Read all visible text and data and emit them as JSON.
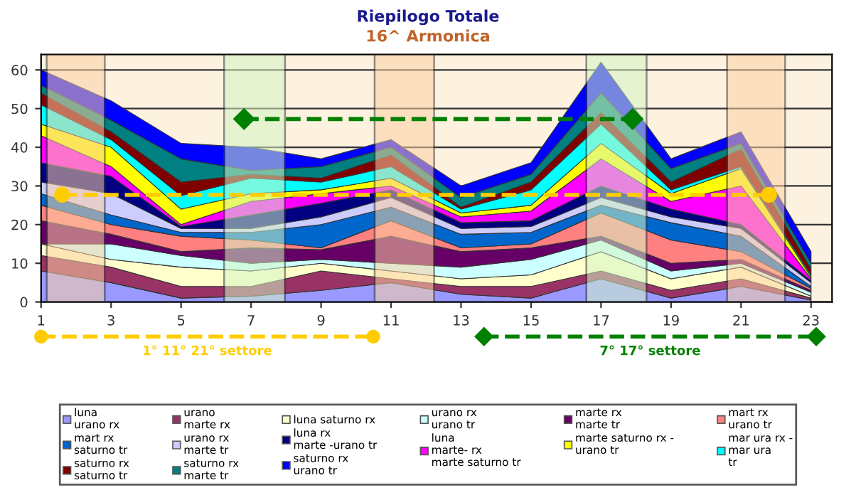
{
  "chart_data": {
    "type": "area",
    "stacked": true,
    "title": "Riepilogo Totale",
    "subtitle": "16^ Armonica",
    "x": [
      1,
      3,
      5,
      7,
      9,
      11,
      13,
      15,
      17,
      19,
      21,
      23
    ],
    "xlim": [
      1,
      23.6
    ],
    "xticks": [
      1,
      3,
      5,
      7,
      9,
      11,
      13,
      15,
      17,
      19,
      21,
      23
    ],
    "ylim": [
      0,
      64
    ],
    "yticks": [
      0,
      10,
      20,
      30,
      40,
      50,
      60
    ],
    "grid": "y",
    "legend": "bottom",
    "series": [
      {
        "name": "luna\nurano rx",
        "color": "#9999ff",
        "values": [
          8,
          5,
          1,
          1.5,
          3,
          5,
          2,
          1,
          6,
          1,
          4,
          0.5
        ]
      },
      {
        "name": "urano\nmarte rx",
        "color": "#993366",
        "values": [
          4,
          4,
          3,
          2.5,
          5,
          1,
          2,
          3,
          2,
          2,
          2,
          0.5
        ]
      },
      {
        "name": "luna saturno rx",
        "color": "#ffffcc",
        "values": [
          3,
          2,
          5,
          4,
          2,
          2,
          2,
          3,
          5,
          3,
          3,
          0.5
        ]
      },
      {
        "name": "urano rx\nurano tr",
        "color": "#ccffff",
        "values": [
          0,
          4,
          3,
          2,
          1,
          2,
          3,
          4,
          3,
          2,
          1,
          1
        ]
      },
      {
        "name": "marte rx\nmarte tr",
        "color": "#660066",
        "values": [
          6,
          2.5,
          1,
          4,
          2.5,
          7,
          4,
          3,
          1,
          2,
          1,
          0.5
        ]
      },
      {
        "name": "mart rx\nurano tr",
        "color": "#ff8080",
        "values": [
          4,
          2.5,
          4,
          2,
          0.5,
          4,
          1,
          1,
          6,
          6,
          2,
          0.5
        ]
      },
      {
        "name": "mart rx\nsaturno tr",
        "color": "#0066cc",
        "values": [
          3,
          2.5,
          1,
          2,
          6,
          3.5,
          3.5,
          3,
          2,
          4.5,
          4,
          0.5
        ]
      },
      {
        "name": "urano rx\nmarte tr",
        "color": "#ccccff",
        "values": [
          3,
          5.5,
          1,
          1,
          2,
          2.5,
          1.5,
          1.5,
          2,
          1.5,
          2,
          1
        ]
      },
      {
        "name": "luna rx\nmarte -urano tr",
        "color": "#000080",
        "values": [
          5,
          4.5,
          0.5,
          3.5,
          3.5,
          2,
          1.5,
          1.5,
          3,
          2,
          1,
          0.5
        ]
      },
      {
        "name": "luna\nmarte- rx\nmarte saturno tr",
        "color": "#ff00ff",
        "values": [
          7,
          2.5,
          0.5,
          3.5,
          2.5,
          1,
          1.5,
          2.5,
          7,
          2,
          10,
          0.5
        ]
      },
      {
        "name": "marte saturno rx -\nurano tr",
        "color": "#ffff00",
        "values": [
          3,
          5,
          4,
          2,
          1,
          2,
          1,
          1.5,
          4,
          2,
          4.5,
          0.5
        ]
      },
      {
        "name": "mar ura rx -\nmar ura\ntr",
        "color": "#00ffff",
        "values": [
          5,
          2,
          3.5,
          4,
          2,
          3,
          1,
          4,
          5,
          1,
          0.5,
          0.5
        ]
      },
      {
        "name": "saturno rx\nsaturno tr",
        "color": "#800000",
        "values": [
          3,
          2,
          3.5,
          1,
          1,
          3,
          0.5,
          2,
          3,
          2,
          4.5,
          1.5
        ]
      },
      {
        "name": "saturno rx\nmarte tr",
        "color": "#008080",
        "values": [
          2,
          3,
          6,
          1,
          3,
          2,
          2.5,
          2,
          5,
          3.5,
          1.5,
          1.5
        ]
      },
      {
        "name": "saturno rx\nurano tr",
        "color": "#0000ff",
        "values": [
          4,
          5,
          4,
          6,
          2,
          2,
          3,
          3,
          8,
          2.5,
          3,
          3
        ]
      },
      {
        "name": "1° 11° 21° settore",
        "type": "line",
        "color": "#ffcc00",
        "line_style": "dashed",
        "marker": "circle",
        "x": [
          1.6,
          21.8
        ],
        "values": [
          27.7,
          27.7
        ]
      },
      {
        "name": "7° 17° settore",
        "type": "line",
        "color": "#008000",
        "line_style": "dashed",
        "marker": "diamond",
        "x": [
          6.8,
          17.9
        ],
        "values": [
          47.3,
          47.3
        ]
      }
    ],
    "bands": [
      {
        "axis": "x",
        "from": 1.16,
        "to": 2.82,
        "color": "#fbcfa3"
      },
      {
        "axis": "x",
        "from": 6.23,
        "to": 7.97,
        "color": "#d3f5c3"
      },
      {
        "axis": "x",
        "from": 10.53,
        "to": 12.23,
        "color": "#fbcfa3"
      },
      {
        "axis": "x",
        "from": 16.58,
        "to": 18.3,
        "color": "#d3f5c3"
      },
      {
        "axis": "x",
        "from": 20.6,
        "to": 22.26,
        "color": "#fbcfa3"
      }
    ]
  }
}
